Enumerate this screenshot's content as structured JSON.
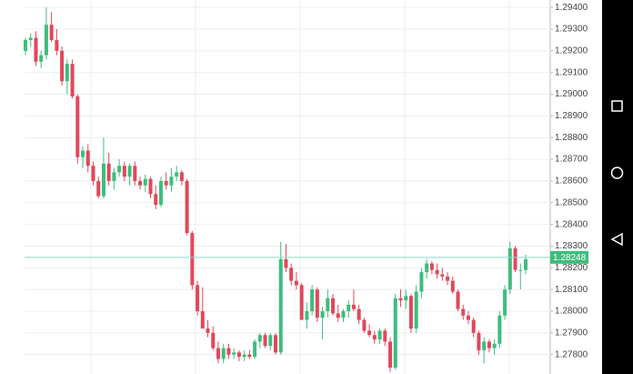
{
  "chart_data": {
    "type": "candlestick",
    "up_color": "#3dbd7d",
    "down_color": "#e0485b",
    "grid": true,
    "ylim": [
      1.2774,
      1.2943
    ],
    "yticks": [
      {
        "value": 1.294,
        "label": "1.29400"
      },
      {
        "value": 1.293,
        "label": "1.29300"
      },
      {
        "value": 1.292,
        "label": "1.29200"
      },
      {
        "value": 1.291,
        "label": "1.29100"
      },
      {
        "value": 1.29,
        "label": "1.29000"
      },
      {
        "value": 1.289,
        "label": "1.28900"
      },
      {
        "value": 1.288,
        "label": "1.28800"
      },
      {
        "value": 1.287,
        "label": "1.28700"
      },
      {
        "value": 1.286,
        "label": "1.28600"
      },
      {
        "value": 1.285,
        "label": "1.28500"
      },
      {
        "value": 1.284,
        "label": "1.28400"
      },
      {
        "value": 1.283,
        "label": "1.28300"
      },
      {
        "value": 1.282,
        "label": "1.28200"
      },
      {
        "value": 1.281,
        "label": "1.28100"
      },
      {
        "value": 1.28,
        "label": "1.28000"
      },
      {
        "value": 1.279,
        "label": "1.27900"
      },
      {
        "value": 1.278,
        "label": "1.27800"
      }
    ],
    "last_price": {
      "value": 1.28248,
      "label": "1.28248"
    },
    "ohlc": [
      [
        1.292,
        1.2926,
        1.2918,
        1.2925
      ],
      [
        1.2925,
        1.2928,
        1.2922,
        1.2926
      ],
      [
        1.2926,
        1.2929,
        1.2913,
        1.2915
      ],
      [
        1.2915,
        1.292,
        1.2912,
        1.2918
      ],
      [
        1.2918,
        1.294,
        1.2916,
        1.2932
      ],
      [
        1.2932,
        1.2938,
        1.2924,
        1.2925
      ],
      [
        1.2925,
        1.293,
        1.2918,
        1.292
      ],
      [
        1.292,
        1.2922,
        1.2904,
        1.2906
      ],
      [
        1.2906,
        1.2916,
        1.29,
        1.2914
      ],
      [
        1.2914,
        1.2916,
        1.2898,
        1.2899
      ],
      [
        1.2899,
        1.29,
        1.2868,
        1.2871
      ],
      [
        1.2871,
        1.2876,
        1.2866,
        1.2874
      ],
      [
        1.2874,
        1.2877,
        1.2864,
        1.2867
      ],
      [
        1.2867,
        1.2869,
        1.2858,
        1.286
      ],
      [
        1.286,
        1.2862,
        1.2852,
        1.2853
      ],
      [
        1.2853,
        1.288,
        1.2852,
        1.2868
      ],
      [
        1.2868,
        1.2873,
        1.2858,
        1.286
      ],
      [
        1.286,
        1.2866,
        1.2856,
        1.2864
      ],
      [
        1.2864,
        1.287,
        1.2862,
        1.2867
      ],
      [
        1.2867,
        1.2869,
        1.286,
        1.2862
      ],
      [
        1.2862,
        1.2868,
        1.2858,
        1.2867
      ],
      [
        1.2867,
        1.2869,
        1.2858,
        1.286
      ],
      [
        1.286,
        1.2862,
        1.2856,
        1.2858
      ],
      [
        1.2858,
        1.2863,
        1.2855,
        1.2861
      ],
      [
        1.2861,
        1.2862,
        1.2852,
        1.2854
      ],
      [
        1.2854,
        1.2858,
        1.2847,
        1.2849
      ],
      [
        1.2849,
        1.2862,
        1.2848,
        1.286
      ],
      [
        1.286,
        1.2864,
        1.2856,
        1.2858
      ],
      [
        1.2858,
        1.2866,
        1.2855,
        1.2862
      ],
      [
        1.2862,
        1.2867,
        1.286,
        1.2864
      ],
      [
        1.2864,
        1.2865,
        1.2858,
        1.286
      ],
      [
        1.286,
        1.2861,
        1.2835,
        1.2836
      ],
      [
        1.2836,
        1.2837,
        1.281,
        1.2812
      ],
      [
        1.2812,
        1.2814,
        1.2798,
        1.28
      ],
      [
        1.28,
        1.2811,
        1.2792,
        1.2792
      ],
      [
        1.2792,
        1.2796,
        1.2788,
        1.279
      ],
      [
        1.279,
        1.2793,
        1.2782,
        1.2783
      ],
      [
        1.2783,
        1.2786,
        1.2776,
        1.2778
      ],
      [
        1.2778,
        1.2785,
        1.2776,
        1.2783
      ],
      [
        1.2783,
        1.2785,
        1.2778,
        1.278
      ],
      [
        1.278,
        1.2783,
        1.2778,
        1.2781
      ],
      [
        1.2781,
        1.2782,
        1.2777,
        1.2779
      ],
      [
        1.2779,
        1.2782,
        1.2777,
        1.278
      ],
      [
        1.278,
        1.2782,
        1.2778,
        1.2779
      ],
      [
        1.2779,
        1.2787,
        1.2778,
        1.2786
      ],
      [
        1.2786,
        1.279,
        1.2783,
        1.2789
      ],
      [
        1.2789,
        1.279,
        1.2783,
        1.2784
      ],
      [
        1.2784,
        1.279,
        1.2782,
        1.2789
      ],
      [
        1.2789,
        1.279,
        1.278,
        1.2781
      ],
      [
        1.2781,
        1.2832,
        1.278,
        1.2824
      ],
      [
        1.2824,
        1.2831,
        1.2818,
        1.282
      ],
      [
        1.282,
        1.2822,
        1.2812,
        1.2814
      ],
      [
        1.2814,
        1.2818,
        1.281,
        1.2812
      ],
      [
        1.2812,
        1.2813,
        1.2796,
        1.2796
      ],
      [
        1.2796,
        1.2804,
        1.2792,
        1.28
      ],
      [
        1.28,
        1.2812,
        1.2798,
        1.281
      ],
      [
        1.281,
        1.2811,
        1.2795,
        1.2797
      ],
      [
        1.2797,
        1.2802,
        1.2787,
        1.28
      ],
      [
        1.28,
        1.281,
        1.2797,
        1.2806
      ],
      [
        1.2806,
        1.2808,
        1.2798,
        1.2799
      ],
      [
        1.2799,
        1.2803,
        1.2795,
        1.2797
      ],
      [
        1.2797,
        1.2801,
        1.2795,
        1.28
      ],
      [
        1.28,
        1.2805,
        1.2797,
        1.2803
      ],
      [
        1.2803,
        1.281,
        1.28,
        1.2801
      ],
      [
        1.2801,
        1.2803,
        1.2794,
        1.2796
      ],
      [
        1.2796,
        1.2797,
        1.279,
        1.2791
      ],
      [
        1.2791,
        1.2794,
        1.2788,
        1.2789
      ],
      [
        1.2789,
        1.2791,
        1.2785,
        1.2787
      ],
      [
        1.2787,
        1.2792,
        1.2785,
        1.2791
      ],
      [
        1.2791,
        1.2792,
        1.2784,
        1.2786
      ],
      [
        1.2786,
        1.2788,
        1.2772,
        1.2774
      ],
      [
        1.2774,
        1.2808,
        1.2773,
        1.2806
      ],
      [
        1.2806,
        1.281,
        1.2802,
        1.2805
      ],
      [
        1.2805,
        1.281,
        1.2801,
        1.2807
      ],
      [
        1.2807,
        1.2808,
        1.279,
        1.2792
      ],
      [
        1.2792,
        1.2812,
        1.279,
        1.2809
      ],
      [
        1.2809,
        1.282,
        1.2806,
        1.2818
      ],
      [
        1.2818,
        1.2824,
        1.2815,
        1.2822
      ],
      [
        1.2822,
        1.2823,
        1.2817,
        1.2819
      ],
      [
        1.2819,
        1.2822,
        1.2815,
        1.2817
      ],
      [
        1.2817,
        1.282,
        1.2814,
        1.2816
      ],
      [
        1.2816,
        1.2818,
        1.2812,
        1.2814
      ],
      [
        1.2814,
        1.2816,
        1.2808,
        1.2809
      ],
      [
        1.2809,
        1.281,
        1.28,
        1.2801
      ],
      [
        1.2801,
        1.2803,
        1.2796,
        1.2798
      ],
      [
        1.2798,
        1.28,
        1.2794,
        1.2796
      ],
      [
        1.2796,
        1.2797,
        1.2788,
        1.279
      ],
      [
        1.279,
        1.2791,
        1.278,
        1.2782
      ],
      [
        1.2782,
        1.2788,
        1.2776,
        1.2786
      ],
      [
        1.2786,
        1.2787,
        1.2781,
        1.2783
      ],
      [
        1.2783,
        1.2787,
        1.278,
        1.2785
      ],
      [
        1.2785,
        1.28,
        1.2783,
        1.2798
      ],
      [
        1.2798,
        1.2812,
        1.2796,
        1.281
      ],
      [
        1.281,
        1.2832,
        1.2808,
        1.2829
      ],
      [
        1.2829,
        1.283,
        1.2818,
        1.2819
      ],
      [
        1.2819,
        1.2822,
        1.281,
        1.2819
      ],
      [
        1.2819,
        1.2826,
        1.2817,
        1.2824
      ]
    ]
  }
}
